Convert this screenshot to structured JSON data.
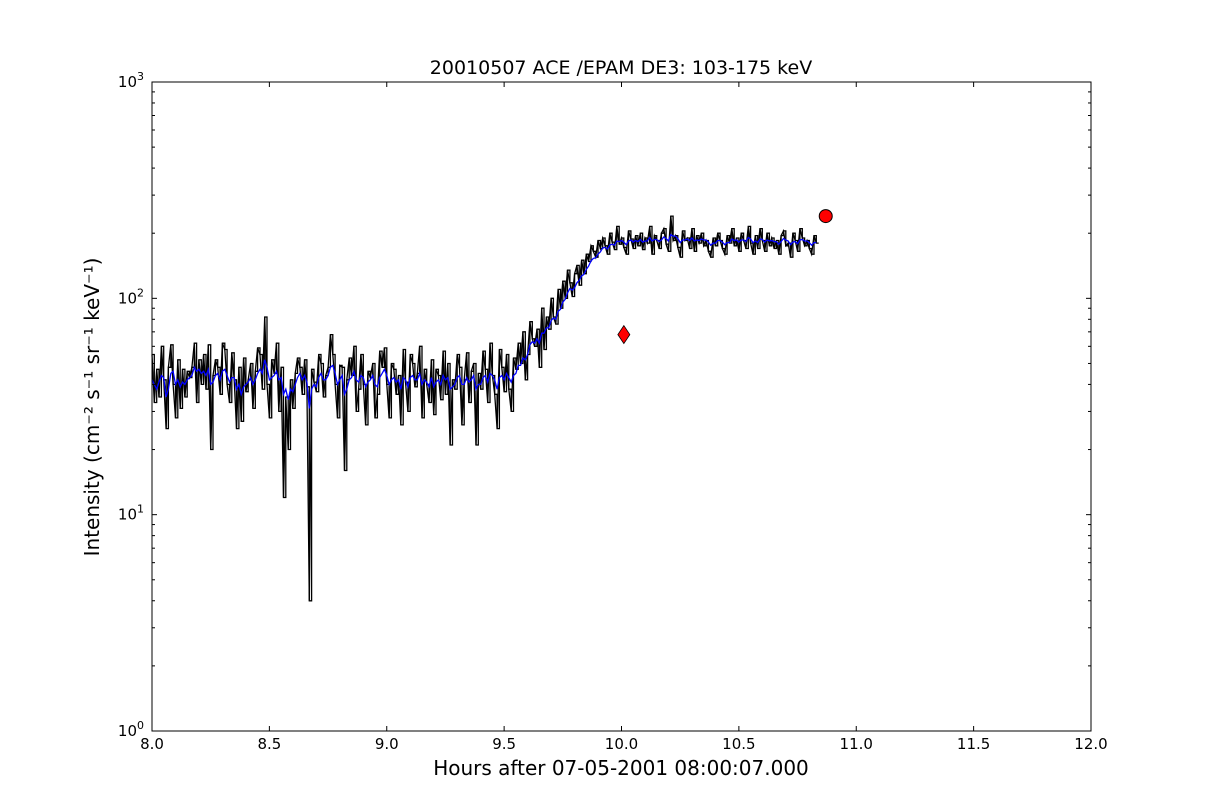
{
  "chart_data": {
    "type": "line",
    "title": "20010507 ACE /EPAM DE3: 103-175 keV",
    "xlabel": "Hours after 07-05-2001 08:00:07.000",
    "ylabel": "Intensity (cm⁻² s⁻¹ sr⁻¹ keV⁻¹)",
    "xlim": [
      8.0,
      12.0
    ],
    "ylim": [
      1,
      1000
    ],
    "yscale": "log",
    "grid": false,
    "x_ticks": [
      "8.0",
      "8.5",
      "9.0",
      "9.5",
      "10.0",
      "10.5",
      "11.0",
      "11.5",
      "12.0"
    ],
    "x_tick_values": [
      8.0,
      8.5,
      9.0,
      9.5,
      10.0,
      10.5,
      11.0,
      11.5,
      12.0
    ],
    "y_ticks": [
      {
        "base": "10",
        "exp": "0",
        "value": 1
      },
      {
        "base": "10",
        "exp": "1",
        "value": 10
      },
      {
        "base": "10",
        "exp": "2",
        "value": 100
      },
      {
        "base": "10",
        "exp": "3",
        "value": 1000
      }
    ],
    "series": [
      {
        "color": "#000000",
        "style": "steps-and-line",
        "x_start": 8.0,
        "x_step": 0.01,
        "values": [
          55,
          33,
          47,
          35,
          60,
          42,
          25,
          48,
          61,
          40,
          28,
          52,
          31,
          47,
          35,
          46,
          43,
          48,
          62,
          33,
          52,
          40,
          55,
          38,
          61,
          20,
          44,
          52,
          48,
          36,
          62,
          58,
          40,
          33,
          56,
          42,
          25,
          48,
          27,
          53,
          37,
          42,
          50,
          31,
          46,
          59,
          55,
          38,
          82,
          40,
          28,
          52,
          45,
          62,
          30,
          48,
          12,
          35,
          20,
          42,
          31,
          45,
          53,
          48,
          36,
          52,
          39,
          4,
          47,
          41,
          37,
          55,
          50,
          35,
          44,
          48,
          68,
          55,
          40,
          28,
          49,
          48,
          16,
          42,
          53,
          44,
          60,
          30,
          38,
          55,
          40,
          26,
          46,
          43,
          50,
          28,
          36,
          57,
          48,
          59,
          40,
          28,
          50,
          47,
          36,
          44,
          26,
          58,
          41,
          30,
          55,
          50,
          39,
          45,
          60,
          28,
          47,
          40,
          33,
          52,
          29,
          47,
          44,
          34,
          57,
          36,
          50,
          21,
          42,
          38,
          55,
          48,
          26,
          42,
          56,
          33,
          46,
          50,
          21,
          45,
          38,
          57,
          47,
          33,
          62,
          44,
          36,
          25,
          58,
          48,
          37,
          55,
          38,
          30,
          53,
          47,
          62,
          50,
          70,
          42,
          55,
          78,
          65,
          60,
          72,
          48,
          90,
          58,
          82,
          72,
          100,
          82,
          76,
          110,
          90,
          120,
          100,
          135,
          118,
          102,
          130,
          142,
          115,
          150,
          130,
          160,
          148,
          175,
          165,
          155,
          185,
          170,
          190,
          175,
          160,
          200,
          182,
          168,
          215,
          178,
          190,
          172,
          160,
          205,
          188,
          170,
          195,
          175,
          200,
          168,
          190,
          180,
          215,
          160,
          195,
          185,
          170,
          200,
          210,
          178,
          165,
          240,
          185,
          195,
          172,
          155,
          205,
          185,
          190,
          170,
          210,
          165,
          195,
          180,
          200,
          175,
          185,
          165,
          155,
          190,
          175,
          200,
          185,
          170,
          160,
          195,
          180,
          210,
          175,
          190,
          165,
          200,
          185,
          170,
          215,
          180,
          160,
          195,
          170,
          210,
          185,
          165,
          200,
          175,
          190,
          170,
          185,
          160,
          195,
          205,
          175,
          180,
          155,
          200,
          185,
          165,
          210,
          190,
          175,
          185,
          170,
          160,
          195,
          180
        ]
      },
      {
        "color": "#0000ff",
        "style": "line",
        "x_start": 8.0,
        "x_step": 0.01,
        "values": [
          42,
          40,
          38,
          41,
          44,
          43,
          35,
          38,
          45,
          46,
          40,
          42,
          39,
          41,
          40,
          42,
          43,
          44,
          48,
          46,
          47,
          45,
          46,
          44,
          47,
          40,
          41,
          44,
          45,
          42,
          46,
          47,
          44,
          41,
          43,
          43,
          38,
          40,
          36,
          39,
          40,
          41,
          43,
          40,
          42,
          45,
          47,
          45,
          52,
          48,
          42,
          43,
          44,
          46,
          42,
          43,
          36,
          38,
          34,
          38,
          37,
          40,
          43,
          45,
          42,
          44,
          41,
          31,
          38,
          40,
          39,
          43,
          45,
          42,
          42,
          44,
          48,
          49,
          45,
          40,
          42,
          44,
          36,
          38,
          42,
          43,
          46,
          42,
          41,
          44,
          43,
          39,
          41,
          42,
          44,
          40,
          39,
          43,
          45,
          47,
          44,
          40,
          42,
          43,
          41,
          42,
          38,
          43,
          42,
          39,
          43,
          44,
          42,
          42,
          45,
          40,
          42,
          41,
          39,
          43,
          39,
          41,
          42,
          40,
          44,
          42,
          43,
          38,
          39,
          40,
          43,
          44,
          40,
          40,
          43,
          41,
          42,
          44,
          38,
          40,
          40,
          43,
          44,
          41,
          45,
          44,
          42,
          38,
          43,
          44,
          42,
          45,
          43,
          41,
          44,
          45,
          49,
          49,
          53,
          52,
          55,
          61,
          63,
          62,
          65,
          62,
          69,
          69,
          73,
          73,
          79,
          81,
          80,
          87,
          89,
          96,
          99,
          106,
          111,
          109,
          112,
          118,
          121,
          127,
          129,
          136,
          141,
          149,
          153,
          154,
          160,
          164,
          171,
          172,
          169,
          176,
          178,
          176,
          184,
          183,
          185,
          182,
          177,
          184,
          186,
          182,
          185,
          183,
          187,
          182,
          184,
          184,
          191,
          184,
          187,
          187,
          183,
          186,
          192,
          189,
          184,
          197,
          194,
          194,
          189,
          181,
          186,
          186,
          188,
          185,
          190,
          184,
          186,
          185,
          188,
          186,
          186,
          182,
          176,
          180,
          180,
          185,
          185,
          182,
          177,
          181,
          181,
          188,
          185,
          186,
          182,
          186,
          186,
          183,
          191,
          188,
          181,
          184,
          181,
          188,
          187,
          182,
          186,
          184,
          185,
          183,
          183,
          178,
          183,
          189,
          186,
          184,
          177,
          182,
          183,
          179,
          186,
          187,
          184,
          184,
          181,
          176,
          181,
          181
        ]
      }
    ],
    "markers": [
      {
        "type": "diamond",
        "color": "#ff0000",
        "x": 10.01,
        "y": 68
      },
      {
        "type": "circle",
        "color": "#ff0000",
        "x": 10.87,
        "y": 240
      }
    ]
  }
}
